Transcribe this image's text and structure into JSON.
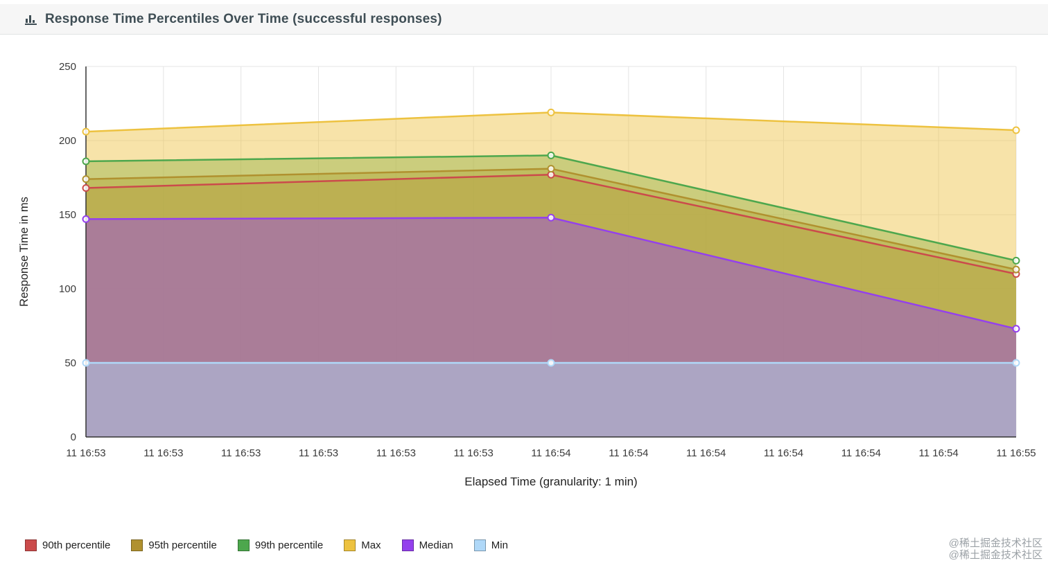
{
  "header": {
    "title": "Response Time Percentiles Over Time (successful responses)"
  },
  "chart_data": {
    "type": "area",
    "title": "Response Time Percentiles Over Time (successful responses)",
    "xlabel": "Elapsed Time (granularity: 1 min)",
    "ylabel": "Response Time in ms",
    "ylim": [
      0,
      250
    ],
    "y_ticks": [
      0,
      50,
      100,
      150,
      200,
      250
    ],
    "x_labels": [
      "11 16:53",
      "11 16:53",
      "11 16:53",
      "11 16:53",
      "11 16:53",
      "11 16:53",
      "11 16:54",
      "11 16:54",
      "11 16:54",
      "11 16:54",
      "11 16:54",
      "11 16:54",
      "11 16:55"
    ],
    "x_points": [
      0,
      6,
      12
    ],
    "grid": true,
    "legend_position": "bottom",
    "fill_opacity": 0.45,
    "series": [
      {
        "name": "90th percentile",
        "color": "#cb4b4b",
        "values": [
          168,
          177,
          110
        ]
      },
      {
        "name": "95th percentile",
        "color": "#b0912f",
        "values": [
          174,
          181,
          113
        ]
      },
      {
        "name": "99th percentile",
        "color": "#4da74d",
        "values": [
          186,
          190,
          119
        ]
      },
      {
        "name": "Max",
        "color": "#edc240",
        "values": [
          206,
          219,
          207
        ]
      },
      {
        "name": "Median",
        "color": "#9440ed",
        "values": [
          147,
          148,
          73
        ]
      },
      {
        "name": "Min",
        "color": "#afd8f8",
        "values": [
          50,
          50,
          50
        ]
      }
    ]
  },
  "watermark": {
    "line1": "@稀土掘金技术社区",
    "line2": "@稀土掘金技术社区"
  }
}
